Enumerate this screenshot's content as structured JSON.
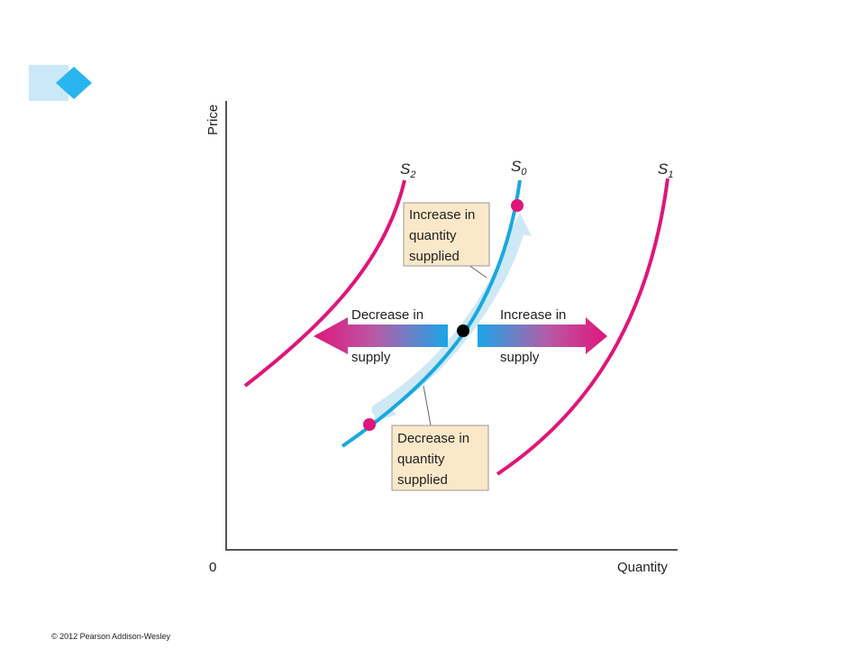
{
  "axes": {
    "ylabel": "Price",
    "xlabel": "Quantity",
    "origin_label": "0"
  },
  "curves": [
    {
      "label": "S",
      "subscript": "2",
      "color": "#e0157a"
    },
    {
      "label": "S",
      "subscript": "0",
      "color": "#18a8e0"
    },
    {
      "label": "S",
      "subscript": "1",
      "color": "#e0157a"
    }
  ],
  "boxes": {
    "increase_qs": [
      "Increase in",
      "quantity",
      "supplied"
    ],
    "decrease_qs": [
      "Decrease in",
      "quantity",
      "supplied"
    ]
  },
  "arrows": {
    "decrease_supply": [
      "Decrease in",
      "supply"
    ],
    "increase_supply": [
      "Increase in",
      "supply"
    ]
  },
  "points": {
    "equilibrium_color": "#000000",
    "endpoint_color": "#e0157a"
  },
  "box_color": "#fbe8c8",
  "footer": {
    "copyright": "© 2012 Pearson Addison-Wesley"
  }
}
